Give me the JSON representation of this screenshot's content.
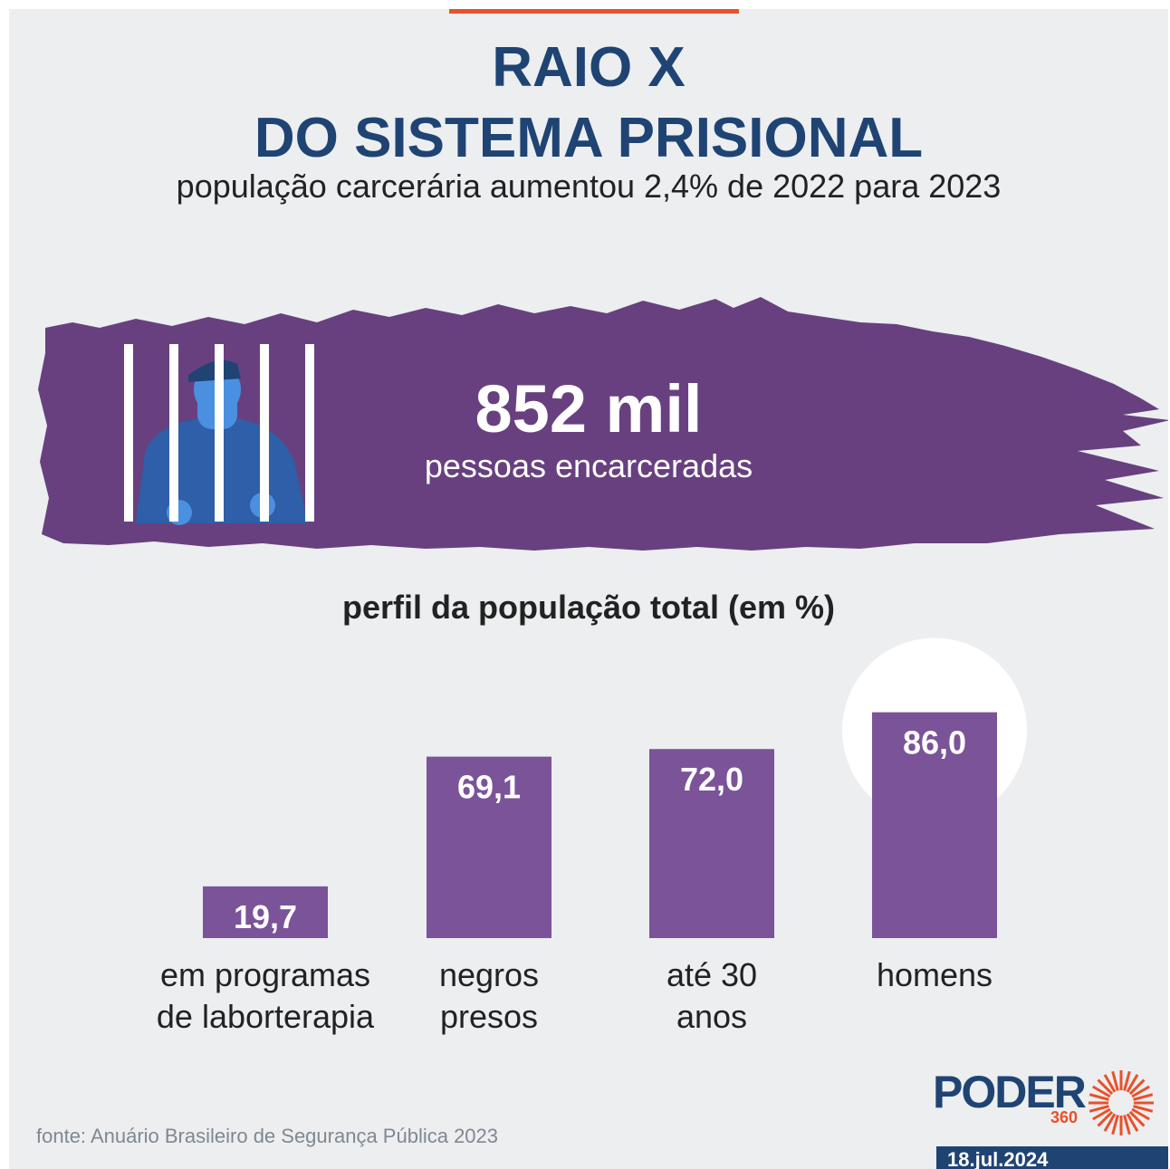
{
  "header": {
    "title_line1": "RAIO X",
    "title_line2": "DO SISTEMA PRISIONAL",
    "subtitle": "população carcerária aumentou 2,4% de 2022 para 2023"
  },
  "highlight": {
    "value": "852 mil",
    "caption": "pessoas encarceradas",
    "icon": "prisoner-behind-bars-icon"
  },
  "chart_data": {
    "type": "bar",
    "title": "perfil da população total (em %)",
    "categories": [
      "em programas\nde laborterapia",
      "negros\npresos",
      "até 30\nanos",
      "homens"
    ],
    "values": [
      19.7,
      69.1,
      72.0,
      86.0
    ],
    "value_labels": [
      "19,7",
      "69,1",
      "72,0",
      "86,0"
    ],
    "ylim": [
      0,
      100
    ],
    "bar_color": "#7b5399",
    "highlighted_category": "homens"
  },
  "footer": {
    "source": "fonte: Anuário Brasileiro de Segurança Pública 2023",
    "logo_text": "PODER",
    "logo_sub": "360",
    "date": "18.jul.2024"
  },
  "colors": {
    "title": "#1f4473",
    "accent": "#e8512a",
    "brush": "#68407f",
    "bar": "#7b5399",
    "figure": "#2e5fa8"
  }
}
